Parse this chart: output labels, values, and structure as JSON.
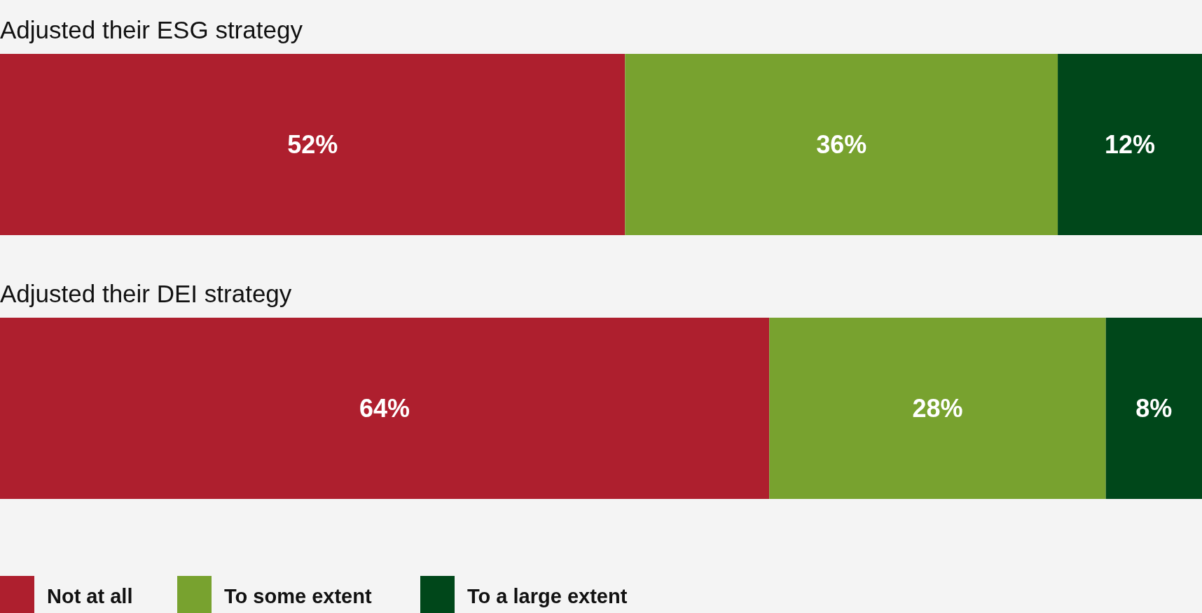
{
  "chart_data": {
    "type": "bar",
    "orientation": "horizontal",
    "stacked": true,
    "categories": [
      "Adjusted their ESG strategy",
      "Adjusted their DEI strategy"
    ],
    "series": [
      {
        "name": "Not at all",
        "color": "#ae1f2e",
        "values": [
          52,
          64
        ],
        "value_labels": [
          "52%",
          "64%"
        ]
      },
      {
        "name": "To some extent",
        "color": "#78a22f",
        "values": [
          36,
          28
        ],
        "value_labels": [
          "36%",
          "28%"
        ]
      },
      {
        "name": "To a large extent",
        "color": "#00471a",
        "values": [
          12,
          8
        ],
        "value_labels": [
          "12%",
          "8%"
        ]
      }
    ],
    "legend": "bottom"
  }
}
